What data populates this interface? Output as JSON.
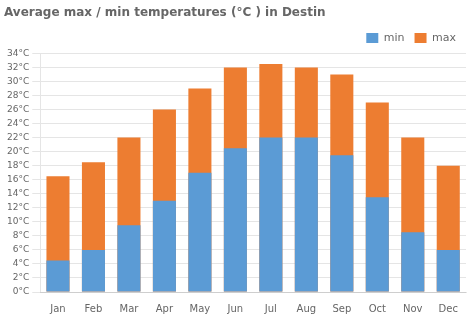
{
  "chart_data": {
    "type": "bar",
    "title": "Average max / min temperatures (°C ) in Destin",
    "categories": [
      "Jan",
      "Feb",
      "Mar",
      "Apr",
      "May",
      "Jun",
      "Jul",
      "Aug",
      "Sep",
      "Oct",
      "Nov",
      "Dec"
    ],
    "series": [
      {
        "name": "min",
        "color": "#5b9bd5",
        "values": [
          4.5,
          6,
          9.5,
          13,
          17,
          20.5,
          22,
          22,
          19.5,
          13.5,
          8.5,
          6
        ]
      },
      {
        "name": "max",
        "color": "#ed7d31",
        "values": [
          16.5,
          18.5,
          22,
          26,
          29,
          32,
          32.5,
          32,
          31,
          27,
          22,
          18
        ]
      }
    ],
    "ylim": [
      0,
      34
    ],
    "yticks": [
      {
        "value": 0,
        "label": "0°C"
      },
      {
        "value": 2,
        "label": "2°C"
      },
      {
        "value": 4,
        "label": "4°C"
      },
      {
        "value": 6,
        "label": "6°C"
      },
      {
        "value": 8,
        "label": "8°C"
      },
      {
        "value": 10,
        "label": "10°C"
      },
      {
        "value": 12,
        "label": "12°C"
      },
      {
        "value": 14,
        "label": "14°C"
      },
      {
        "value": 16,
        "label": "16°C"
      },
      {
        "value": 18,
        "label": "18°C"
      },
      {
        "value": 20,
        "label": "20°C"
      },
      {
        "value": 22,
        "label": "22°C"
      },
      {
        "value": 24,
        "label": "24°C"
      },
      {
        "value": 26,
        "label": "26°C"
      },
      {
        "value": 28,
        "label": "28°C"
      },
      {
        "value": 30,
        "label": "30°C"
      },
      {
        "value": 32,
        "label": "32°C"
      },
      {
        "value": 34,
        "label": "34°C"
      }
    ],
    "grid": true,
    "legend": "upper right"
  }
}
